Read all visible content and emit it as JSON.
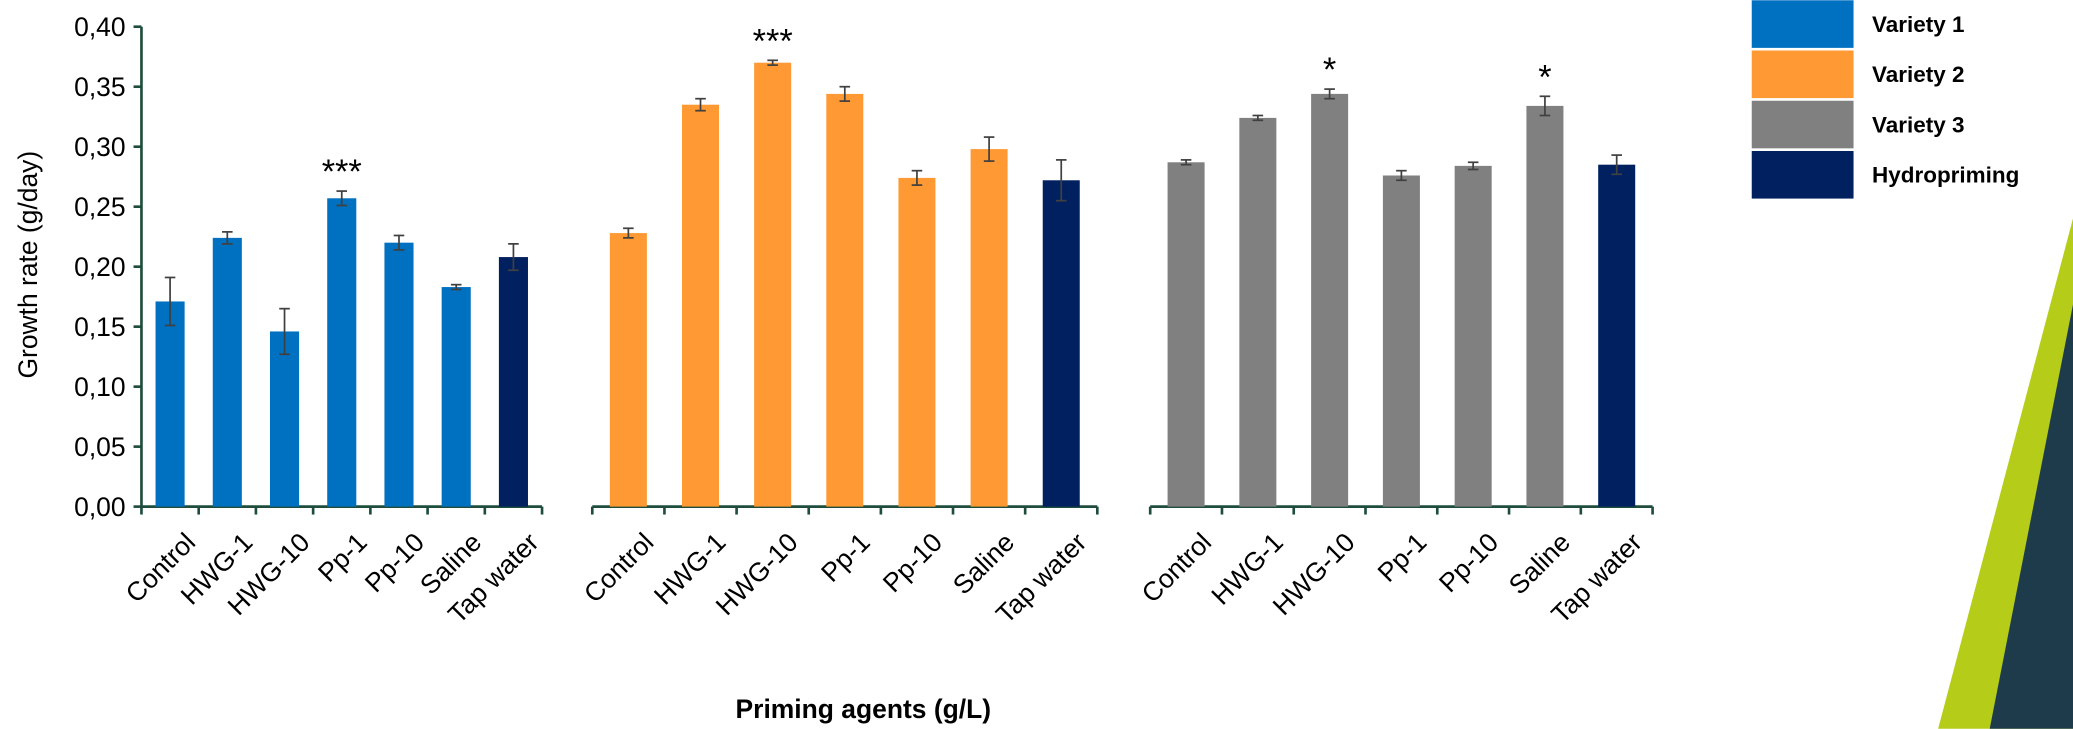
{
  "chart_data": {
    "type": "bar",
    "y_label": "Growth rate (g/day)",
    "x_label": "Priming agents (g/L)",
    "categories": [
      "Control",
      "HWG-1",
      "HWG-10",
      "Pp-1",
      "Pp-10",
      "Saline",
      "Tap water",
      "Control",
      "HWG-1",
      "HWG-10",
      "Pp-1",
      "Pp-10",
      "Saline",
      "Tap water",
      "Control",
      "HWG-1",
      "HWG-10",
      "Pp-1",
      "Pp-10",
      "Saline",
      "Tap water"
    ],
    "series": [
      {
        "name": "Variety 1",
        "color": "#0070c0",
        "values": [
          0.171,
          0.224,
          0.146,
          0.257,
          0.22,
          0.183,
          null,
          null,
          null,
          null,
          null,
          null,
          null,
          null,
          null,
          null,
          null,
          null,
          null,
          null,
          null
        ],
        "errors": [
          0.02,
          0.005,
          0.019,
          0.006,
          0.006,
          0.002,
          null,
          null,
          null,
          null,
          null,
          null,
          null,
          null,
          null,
          null,
          null,
          null,
          null,
          null,
          null
        ],
        "significance": [
          null,
          null,
          null,
          "***",
          null,
          null,
          null,
          null,
          null,
          null,
          null,
          null,
          null,
          null,
          null,
          null,
          null,
          null,
          null,
          null,
          null
        ]
      },
      {
        "name": "Variety 2",
        "color": "#ff9933",
        "values": [
          null,
          null,
          null,
          null,
          null,
          null,
          null,
          0.228,
          0.335,
          0.37,
          0.344,
          0.274,
          0.298,
          null,
          null,
          null,
          null,
          null,
          null,
          null,
          null
        ],
        "errors": [
          null,
          null,
          null,
          null,
          null,
          null,
          null,
          0.004,
          0.005,
          0.002,
          0.006,
          0.006,
          0.01,
          null,
          null,
          null,
          null,
          null,
          null,
          null,
          null
        ],
        "significance": [
          null,
          null,
          null,
          null,
          null,
          null,
          null,
          null,
          null,
          "***",
          null,
          null,
          null,
          null,
          null,
          null,
          null,
          null,
          null,
          null,
          null
        ]
      },
      {
        "name": "Variety 3",
        "color": "#808080",
        "values": [
          null,
          null,
          null,
          null,
          null,
          null,
          null,
          null,
          null,
          null,
          null,
          null,
          null,
          null,
          0.287,
          0.324,
          0.344,
          0.276,
          0.284,
          0.334,
          null
        ],
        "errors": [
          null,
          null,
          null,
          null,
          null,
          null,
          null,
          null,
          null,
          null,
          null,
          null,
          null,
          null,
          0.002,
          0.002,
          0.004,
          0.004,
          0.003,
          0.008,
          null
        ],
        "significance": [
          null,
          null,
          null,
          null,
          null,
          null,
          null,
          null,
          null,
          null,
          null,
          null,
          null,
          null,
          null,
          null,
          "*",
          null,
          null,
          "*",
          null
        ]
      },
      {
        "name": "Hydropriming",
        "color": "#002060",
        "values": [
          null,
          null,
          null,
          null,
          null,
          null,
          0.208,
          null,
          null,
          null,
          null,
          null,
          null,
          0.272,
          null,
          null,
          null,
          null,
          null,
          null,
          0.285
        ],
        "errors": [
          null,
          null,
          null,
          null,
          null,
          null,
          0.011,
          null,
          null,
          null,
          null,
          null,
          null,
          0.017,
          null,
          null,
          null,
          null,
          null,
          null,
          0.008
        ],
        "significance": [
          null,
          null,
          null,
          null,
          null,
          null,
          null,
          null,
          null,
          null,
          null,
          null,
          null,
          null,
          null,
          null,
          null,
          null,
          null,
          null,
          null
        ]
      }
    ],
    "ylim": [
      0,
      0.4
    ],
    "yticks": [
      {
        "value": 0,
        "label": "0,00"
      },
      {
        "value": 0.05,
        "label": "0,05"
      },
      {
        "value": 0.1,
        "label": "0,10"
      },
      {
        "value": 0.15,
        "label": "0,15"
      },
      {
        "value": 0.2,
        "label": "0,20"
      },
      {
        "value": 0.25,
        "label": "0,25"
      },
      {
        "value": 0.3,
        "label": "0,30"
      },
      {
        "value": 0.35,
        "label": "0,35"
      },
      {
        "value": 0.4,
        "label": "0,40"
      }
    ],
    "legend": "top-right"
  }
}
